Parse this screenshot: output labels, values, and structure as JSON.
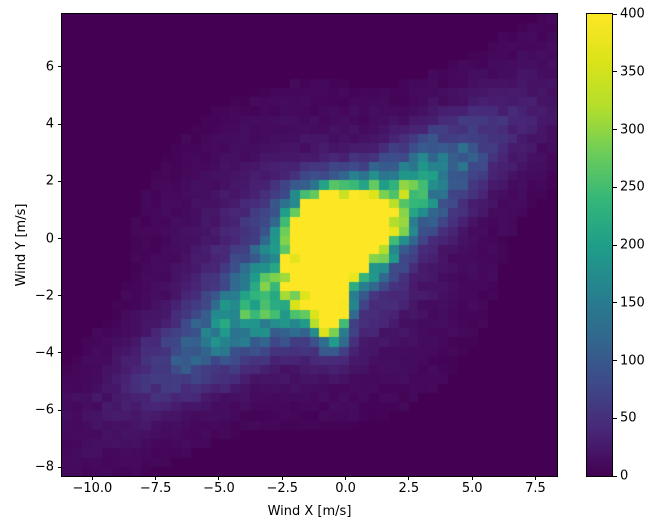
{
  "chart_data": {
    "type": "heatmap",
    "subtype": "2d-histogram",
    "title": "",
    "xlabel": "Wind X [m/s]",
    "ylabel": "Wind Y [m/s]",
    "xlim": [
      -11.2,
      8.35
    ],
    "ylim": [
      -8.3,
      7.85
    ],
    "bins": 50,
    "grid": false,
    "x_ticks": [
      {
        "value": -10.0,
        "label": "−10.0"
      },
      {
        "value": -7.5,
        "label": "−7.5"
      },
      {
        "value": -5.0,
        "label": "−5.0"
      },
      {
        "value": -2.5,
        "label": "−2.5"
      },
      {
        "value": 0.0,
        "label": "0.0"
      },
      {
        "value": 2.5,
        "label": "2.5"
      },
      {
        "value": 5.0,
        "label": "5.0"
      },
      {
        "value": 7.5,
        "label": "7.5"
      }
    ],
    "y_ticks": [
      {
        "value": 6,
        "label": "6"
      },
      {
        "value": 4,
        "label": "4"
      },
      {
        "value": 2,
        "label": "2"
      },
      {
        "value": 0,
        "label": "0"
      },
      {
        "value": -2,
        "label": "−2"
      },
      {
        "value": -4,
        "label": "−4"
      },
      {
        "value": -6,
        "label": "−6"
      },
      {
        "value": -8,
        "label": "−8"
      }
    ],
    "colorbar": {
      "position": "right",
      "min": 0,
      "max": 400,
      "ticks": [
        {
          "value": 0,
          "label": "0"
        },
        {
          "value": 50,
          "label": "50"
        },
        {
          "value": 100,
          "label": "100"
        },
        {
          "value": 150,
          "label": "150"
        },
        {
          "value": 200,
          "label": "200"
        },
        {
          "value": 250,
          "label": "250"
        },
        {
          "value": 300,
          "label": "300"
        },
        {
          "value": 350,
          "label": "350"
        },
        {
          "value": 400,
          "label": "400"
        }
      ]
    },
    "colormap": {
      "name": "viridis",
      "stops": [
        {
          "t": 0.0,
          "color": "#440154"
        },
        {
          "t": 0.1,
          "color": "#482878"
        },
        {
          "t": 0.2,
          "color": "#3e4a89"
        },
        {
          "t": 0.3,
          "color": "#31688e"
        },
        {
          "t": 0.4,
          "color": "#26828e"
        },
        {
          "t": 0.5,
          "color": "#1f9e89"
        },
        {
          "t": 0.6,
          "color": "#35b779"
        },
        {
          "t": 0.7,
          "color": "#6dcd59"
        },
        {
          "t": 0.8,
          "color": "#b4de2c"
        },
        {
          "t": 0.9,
          "color": "#dce319"
        },
        {
          "t": 1.0,
          "color": "#fde725"
        }
      ]
    },
    "density_model": {
      "description": "Sum of Gaussian components approximating the observed bin counts; counts clip to colormap max 400. Dense saturated core near (-0.7,-0.5) with downward tail to (-0.6,-3), diagonal ridge along y~0.63x reaching (5,3.3) and (-8.5,-5.5).",
      "components": [
        {
          "cx": -0.5,
          "cy": 0.35,
          "sx": 1.05,
          "sy": 0.8,
          "rot": 0,
          "amp": 650
        },
        {
          "cx": 0.2,
          "cy": 0.3,
          "sx": 0.85,
          "sy": 0.7,
          "rot": 0,
          "amp": 480
        },
        {
          "cx": -0.9,
          "cy": -1.1,
          "sx": 0.6,
          "sy": 1.05,
          "rot": 0,
          "amp": 600
        },
        {
          "cx": -0.55,
          "cy": -2.4,
          "sx": 0.38,
          "sy": 0.75,
          "rot": 0,
          "amp": 470
        },
        {
          "cx": -1.2,
          "cy": -0.6,
          "sx": 2.6,
          "sy": 2.2,
          "rot": 0,
          "amp": 70
        },
        {
          "cx": -0.4,
          "cy": -0.4,
          "sx": 6.0,
          "sy": 1.25,
          "rot": 33,
          "amp": 50
        },
        {
          "cx": -0.4,
          "cy": -0.4,
          "sx": 2.6,
          "sy": 0.9,
          "rot": 33,
          "amp": 120
        },
        {
          "cx": 1.5,
          "cy": 1.0,
          "sx": 2.8,
          "sy": 0.85,
          "rot": 33,
          "amp": 165
        },
        {
          "cx": -4.2,
          "cy": -2.8,
          "sx": 2.6,
          "sy": 0.85,
          "rot": 31,
          "amp": 110
        }
      ],
      "noise": {
        "seed": 1337,
        "mult_min": 0.75,
        "mult_span": 0.55,
        "speckle": 8,
        "speckle_below": 60,
        "cutoff": 1.5
      }
    },
    "background_color": "#440154",
    "figure_background": "#ffffff"
  }
}
